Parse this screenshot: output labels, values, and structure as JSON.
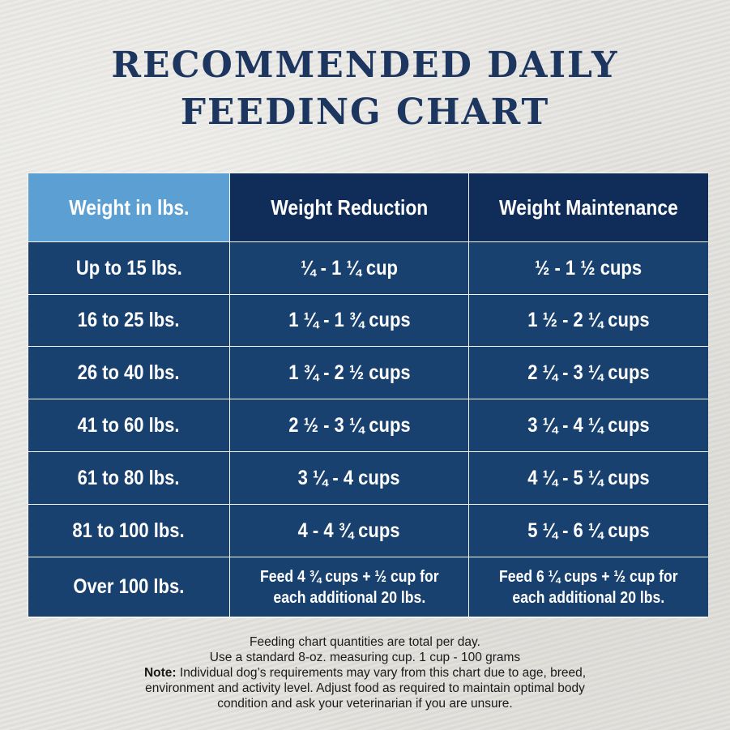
{
  "title": {
    "line1": "RECOMMENDED DAILY",
    "line2": "FEEDING CHART"
  },
  "table": {
    "headers": [
      "Weight in lbs.",
      "Weight Reduction",
      "Weight Maintenance"
    ],
    "rows": [
      [
        "Up to 15 lbs.",
        "¼ - 1 ¼ cup",
        "½ - 1 ½ cups"
      ],
      [
        "16 to 25 lbs.",
        "1 ¼ - 1 ¾ cups",
        "1 ½ - 2 ¼ cups"
      ],
      [
        "26 to 40 lbs.",
        "1 ¾ - 2 ½ cups",
        "2 ¼ - 3 ¼ cups"
      ],
      [
        "41 to 60 lbs.",
        "2 ½ - 3 ¼ cups",
        "3 ¼ - 4 ¼ cups"
      ],
      [
        "61 to 80 lbs.",
        "3 ¼ - 4 cups",
        "4 ¼ - 5 ¼ cups"
      ],
      [
        "81 to 100 lbs.",
        "4 - 4 ¾ cups",
        "5 ¼ - 6 ¼ cups"
      ]
    ],
    "last_row": {
      "weight": "Over 100 lbs.",
      "reduction_line1": "Feed 4 ¾ cups + ½ cup for",
      "reduction_line2": "each additional 20 lbs.",
      "maintenance_line1": "Feed 6 ¼ cups + ½ cup for",
      "maintenance_line2": "each additional 20 lbs."
    }
  },
  "notes": {
    "line1": "Feeding chart quantities are total per day.",
    "line2": "Use a standard 8-oz. measuring cup. 1 cup - 100 grams",
    "note_label": "Note:",
    "line3": " Individual dog’s requirements may vary from this chart due to age, breed,",
    "line4": "environment and activity level. Adjust food as required to maintain optimal body",
    "line5": "condition and ask your veterinarian if you are unsure."
  }
}
